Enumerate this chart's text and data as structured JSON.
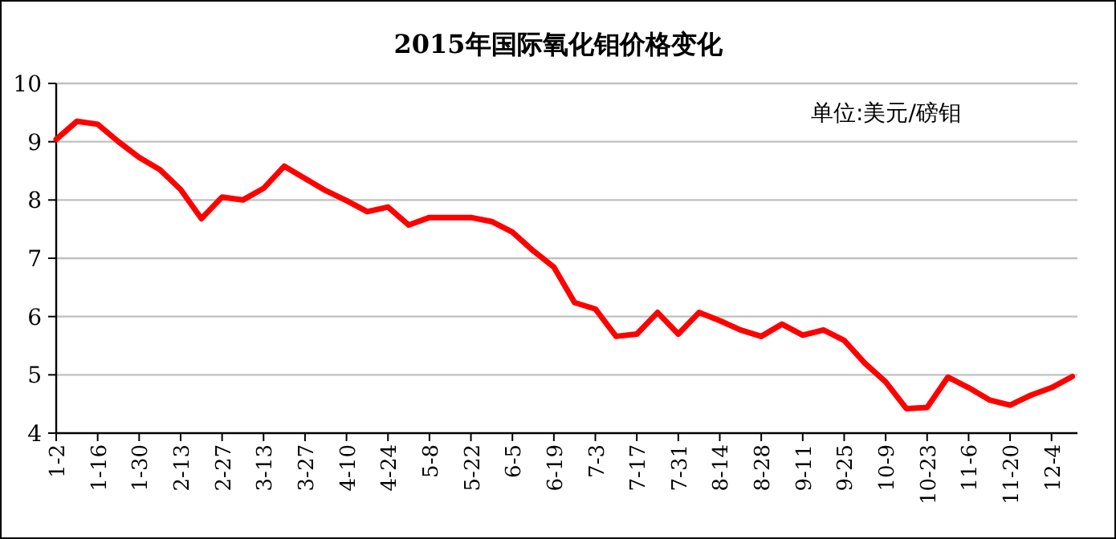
{
  "chart_data": {
    "type": "line",
    "title": "2015年国际氧化钼价格变化",
    "categories": [
      "1-2",
      null,
      "1-16",
      null,
      "1-30",
      null,
      "2-13",
      null,
      "2-27",
      null,
      "3-13",
      null,
      "3-27",
      null,
      "4-10",
      null,
      "4-24",
      null,
      "5-8",
      null,
      "5-22",
      null,
      "6-5",
      null,
      "6-19",
      null,
      "7-3",
      null,
      "7-17",
      null,
      "7-31",
      null,
      "8-14",
      null,
      "8-28",
      null,
      "9-11",
      null,
      "9-25",
      null,
      "10-9",
      null,
      "10-23",
      null,
      "11-6",
      null,
      "11-20",
      null,
      "12-4",
      null
    ],
    "values": [
      9.04,
      9.35,
      9.3,
      9.0,
      8.73,
      8.52,
      8.18,
      7.68,
      8.05,
      8.0,
      8.2,
      8.58,
      8.37,
      8.16,
      7.99,
      7.8,
      7.88,
      7.57,
      7.7,
      7.7,
      7.7,
      7.63,
      7.45,
      7.13,
      6.85,
      6.24,
      6.13,
      5.66,
      5.7,
      6.07,
      5.7,
      6.07,
      5.93,
      5.77,
      5.66,
      5.87,
      5.68,
      5.77,
      5.59,
      5.2,
      4.88,
      4.42,
      4.44,
      4.96,
      4.78,
      4.57,
      4.48,
      4.65,
      4.78,
      4.97
    ],
    "color": "#ff0000",
    "ylim": [
      4,
      10
    ],
    "yticks": [
      4,
      5,
      6,
      7,
      8,
      9,
      10
    ],
    "grid": "y",
    "annotations": [
      "单位:美元/磅钼"
    ]
  }
}
